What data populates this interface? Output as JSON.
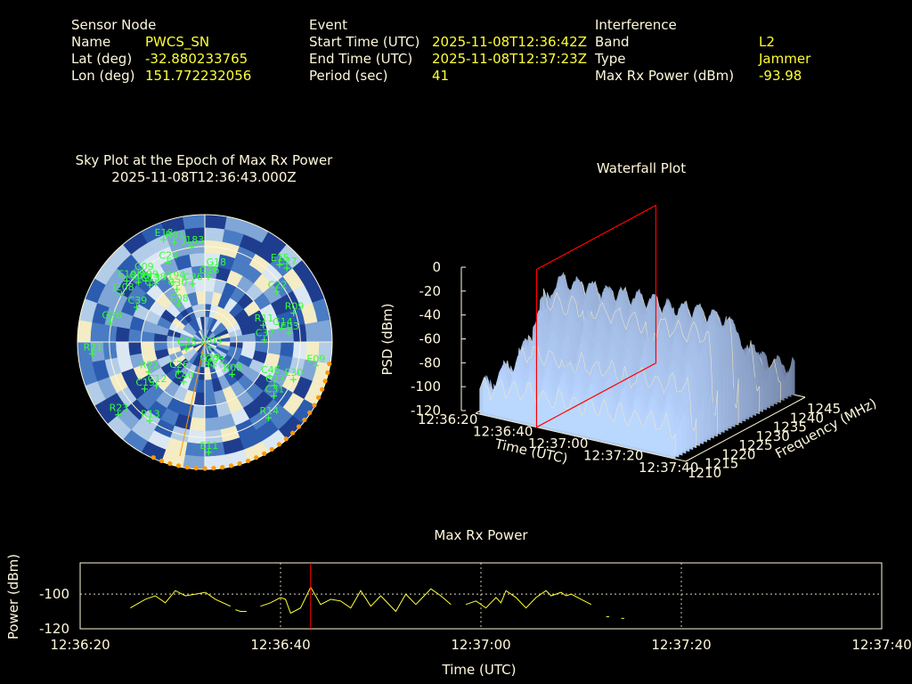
{
  "header": {
    "sensor": {
      "title": "Sensor Node",
      "name_label": "Name",
      "name": "PWCS_SN",
      "lat_label": "Lat (deg)",
      "lat": "-32.880233765",
      "lon_label": "Lon (deg)",
      "lon": "151.772232056"
    },
    "event": {
      "title": "Event",
      "start_label": "Start Time (UTC)",
      "start": "2025-11-08T12:36:42Z",
      "end_label": "End Time (UTC)",
      "end": "2025-11-08T12:37:23Z",
      "period_label": "Period (sec)",
      "period": "41"
    },
    "interference": {
      "title": "Interference",
      "band_label": "Band",
      "band": "L2",
      "type_label": "Type",
      "type": "Jammer",
      "power_label": "Max Rx Power (dBm)",
      "power": "-93.98"
    }
  },
  "colors": {
    "label": "#fff8dc",
    "value": "#ffff33",
    "satellite": "#33ff33",
    "marker": "#ff0000",
    "power_line": "#ffff33",
    "horizon_points": "#ff9900"
  },
  "chart_data": [
    {
      "type": "polar-heatmap",
      "title": "Sky Plot at the Epoch of Max Rx Power",
      "subtitle": "2025-11-08T12:36:43.000Z",
      "rings": 4,
      "azimuth_bins": 36,
      "satellites": [
        {
          "id": "E18",
          "az": -22,
          "el": 12
        },
        {
          "id": "R01",
          "az": -17,
          "el": 16
        },
        {
          "id": "J183",
          "az": -8,
          "el": 22
        },
        {
          "id": "C24",
          "az": -25,
          "el": 28
        },
        {
          "id": "C09",
          "az": -42,
          "el": 25
        },
        {
          "id": "E19",
          "az": -52,
          "el": 20
        },
        {
          "id": "J199",
          "az": -44,
          "el": 30
        },
        {
          "id": "C08",
          "az": -48,
          "el": 27
        },
        {
          "id": "C13",
          "az": -44,
          "el": 34
        },
        {
          "id": "C38",
          "az": -40,
          "el": 36
        },
        {
          "id": "J208",
          "az": -60,
          "el": 22
        },
        {
          "id": "J194",
          "az": -28,
          "el": 42
        },
        {
          "id": "C36",
          "az": -12,
          "el": 48
        },
        {
          "id": "C30",
          "az": -28,
          "el": 48
        },
        {
          "id": "E08",
          "az": -35,
          "el": 58
        },
        {
          "id": "G18",
          "az": 8,
          "el": 38
        },
        {
          "id": "G16",
          "az": 3,
          "el": 44
        },
        {
          "id": "C39",
          "az": -63,
          "el": 36
        },
        {
          "id": "G26",
          "az": -78,
          "el": 22
        },
        {
          "id": "J205",
          "az": 140,
          "el": 85
        },
        {
          "id": "C35",
          "az": -110,
          "el": 76
        },
        {
          "id": "G29",
          "az": 170,
          "el": 74
        },
        {
          "id": "E15",
          "az": 44,
          "el": 14
        },
        {
          "id": "C27",
          "az": 48,
          "el": 12
        },
        {
          "id": "C22",
          "az": 55,
          "el": 28
        },
        {
          "id": "R09",
          "az": 72,
          "el": 24
        },
        {
          "id": "R11",
          "az": 74,
          "el": 47
        },
        {
          "id": "G14",
          "az": 80,
          "el": 35
        },
        {
          "id": "C37",
          "az": 88,
          "el": 48
        },
        {
          "id": "E03",
          "az": 84,
          "el": 30
        },
        {
          "id": "R21",
          "az": -96,
          "el": 10
        },
        {
          "id": "E09",
          "az": 102,
          "el": 10
        },
        {
          "id": "C46",
          "az": 118,
          "el": 38
        },
        {
          "id": "C23",
          "az": 122,
          "el": 32
        },
        {
          "id": "C31",
          "az": 128,
          "el": 28
        },
        {
          "id": "E30",
          "az": 113,
          "el": 22
        },
        {
          "id": "R14",
          "az": 140,
          "el": 20
        },
        {
          "id": "G03",
          "az": 160,
          "el": 72
        },
        {
          "id": "R08",
          "az": 140,
          "el": 60
        },
        {
          "id": "C26",
          "az": -138,
          "el": 62
        },
        {
          "id": "C40",
          "az": -152,
          "el": 58
        },
        {
          "id": "R22",
          "az": -118,
          "el": 45
        },
        {
          "id": "C19",
          "az": -128,
          "el": 36
        },
        {
          "id": "C12",
          "az": -132,
          "el": 44
        },
        {
          "id": "R13",
          "az": -145,
          "el": 22
        },
        {
          "id": "E11",
          "az": 178,
          "el": 12
        },
        {
          "id": "R23",
          "az": -130,
          "el": 10
        }
      ]
    },
    {
      "type": "surface",
      "title": "Waterfall Plot",
      "xlabel": "Time (UTC)",
      "ylabel": "Frequency (MHz)",
      "zlabel": "PSD (dBm)",
      "x_ticks": [
        "12:36:20",
        "12:36:40",
        "12:37:00",
        "12:37:20",
        "12:37:40"
      ],
      "y_ticks": [
        1210,
        1215,
        1220,
        1225,
        1230,
        1235,
        1240,
        1245
      ],
      "z_ticks": [
        0,
        -20,
        -40,
        -60,
        -80,
        -100,
        -120
      ],
      "xlim": [
        "12:36:20",
        "12:37:40"
      ],
      "ylim": [
        1210,
        1245
      ],
      "zlim": [
        -120,
        0
      ],
      "marker_time": "12:36:43"
    },
    {
      "type": "line",
      "title": "Max Rx Power",
      "xlabel": "Time (UTC)",
      "ylabel": "Power (dBm)",
      "x_ticks": [
        "12:36:20",
        "12:36:40",
        "12:37:00",
        "12:37:20",
        "12:37:40"
      ],
      "y_ticks": [
        -100,
        -120
      ],
      "xlim": [
        0,
        80
      ],
      "ylim": [
        -120,
        -82
      ],
      "marker_time_sec": 23,
      "series": [
        {
          "segments": [
            [
              [
                5,
                -108
              ],
              [
                6.5,
                -103
              ],
              [
                7.5,
                -101
              ],
              [
                8.5,
                -105
              ],
              [
                9.5,
                -98
              ],
              [
                10.5,
                -101
              ],
              [
                11.5,
                -100
              ],
              [
                12.5,
                -99
              ],
              [
                13.5,
                -103
              ],
              [
                15,
                -107
              ]
            ],
            [
              [
                15.5,
                -109
              ],
              [
                16,
                -110
              ],
              [
                16.6,
                -110
              ]
            ],
            [
              [
                18,
                -107
              ],
              [
                19,
                -105
              ],
              [
                20,
                -102
              ],
              [
                20.5,
                -103
              ],
              [
                21,
                -111
              ],
              [
                22,
                -108
              ],
              [
                23,
                -96
              ],
              [
                24,
                -106
              ],
              [
                25,
                -103
              ],
              [
                26,
                -104
              ],
              [
                27,
                -108
              ],
              [
                28,
                -98
              ],
              [
                29,
                -107
              ],
              [
                30,
                -101
              ],
              [
                31.5,
                -110
              ],
              [
                32.5,
                -100
              ],
              [
                33.5,
                -106
              ],
              [
                34,
                -103
              ],
              [
                35,
                -97
              ],
              [
                36,
                -101
              ],
              [
                37,
                -106
              ]
            ],
            [
              [
                38.5,
                -106
              ],
              [
                39.5,
                -104
              ],
              [
                40.5,
                -108
              ],
              [
                41.5,
                -102
              ],
              [
                42,
                -105
              ],
              [
                42.5,
                -98
              ],
              [
                43.5,
                -102
              ],
              [
                44.5,
                -108
              ],
              [
                45.5,
                -102
              ],
              [
                46.5,
                -98
              ],
              [
                47,
                -101
              ],
              [
                48,
                -99
              ],
              [
                48.5,
                -101
              ],
              [
                49,
                -100
              ],
              [
                50,
                -103
              ],
              [
                51,
                -106
              ]
            ],
            [
              [
                52.5,
                -113
              ],
              [
                52.8,
                -113
              ]
            ],
            [
              [
                54,
                -114
              ],
              [
                54.3,
                -114
              ]
            ]
          ]
        }
      ]
    }
  ]
}
